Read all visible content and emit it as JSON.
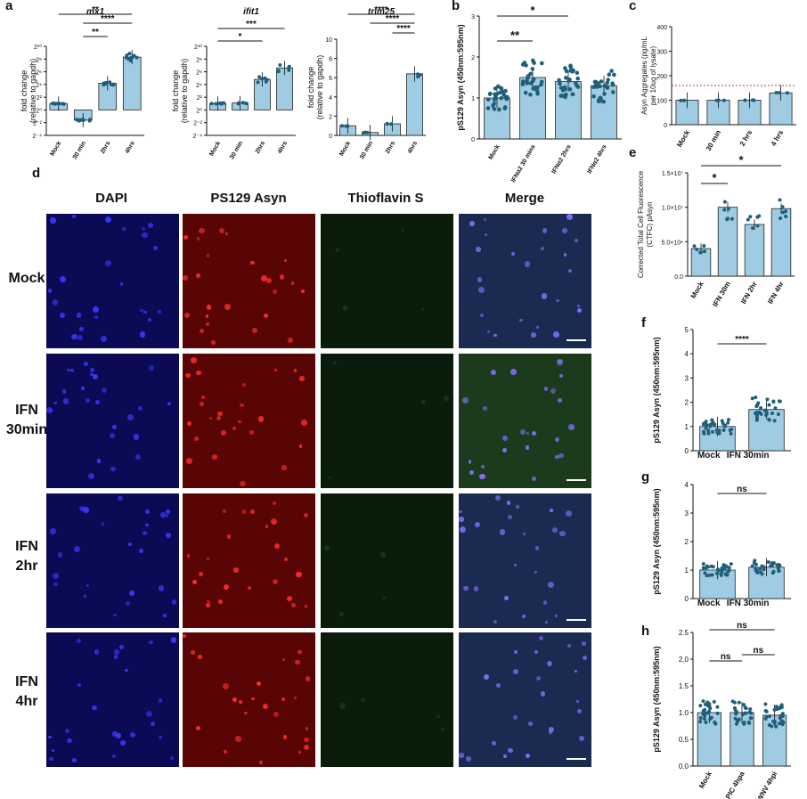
{
  "panels": {
    "a": {
      "letter": "a",
      "charts": [
        {
          "id": "mx1",
          "title": "mx1",
          "ylabel1": "fold change",
          "ylabel2": "(relative to gapdh)",
          "ticks": [
            "2¹⁰",
            "2⁸",
            "2⁶",
            "2⁴",
            "2²",
            "2⁰",
            "2⁻²",
            "2⁻⁴"
          ],
          "categories": [
            "Mock",
            "30 min",
            "2hrs",
            "4hrs"
          ],
          "values": [
            1.0,
            -1.6,
            4.2,
            8.3
          ],
          "sig": [
            {
              "from": 0,
              "to": 3,
              "label": "**"
            },
            {
              "from": 1,
              "to": 3,
              "label": "****"
            },
            {
              "from": 1,
              "to": 2,
              "label": "**"
            }
          ]
        },
        {
          "id": "ifit1",
          "title": "ifit1",
          "ylabel1": "fold change",
          "ylabel2": "(relative to gapdh)",
          "ticks": [
            "2¹⁰",
            "2⁸",
            "2⁶",
            "2⁴",
            "2²",
            "2⁰",
            "2⁻²",
            "2⁻⁴"
          ],
          "categories": [
            "Mock",
            "30 min",
            "2hrs",
            "4hrs"
          ],
          "values": [
            1.0,
            1.1,
            4.8,
            6.6
          ],
          "sig": [
            {
              "from": 0,
              "to": 3,
              "label": "***"
            },
            {
              "from": 0,
              "to": 2,
              "label": "*"
            }
          ]
        },
        {
          "id": "trim25",
          "title": "trim25",
          "ylabel1": "fold change",
          "ylabel2": "(relative to gapdh)",
          "ticks": [
            "10",
            "8",
            "6",
            "4",
            "2",
            "0"
          ],
          "categories": [
            "Mock",
            "30 min",
            "2hrs",
            "4hrs"
          ],
          "values": [
            1.0,
            0.3,
            1.2,
            6.4
          ],
          "sig": [
            {
              "from": 0,
              "to": 3,
              "label": "****"
            },
            {
              "from": 1,
              "to": 3,
              "label": "****"
            },
            {
              "from": 2,
              "to": 3,
              "label": "****"
            }
          ]
        }
      ]
    },
    "b": {
      "letter": "b",
      "ylabel": "pS129 Asyn (450nm:595nm)",
      "ticks": [
        "3",
        "2",
        "1",
        "0"
      ],
      "categories": [
        "Mock",
        "IFNα2 30 mins",
        "IFNα2 2hrs",
        "IFNα2 4hrs"
      ],
      "values": [
        1.0,
        1.5,
        1.4,
        1.3
      ],
      "sig": [
        {
          "from": 0,
          "to": 2,
          "label": "*"
        },
        {
          "from": 0,
          "to": 1,
          "label": "**"
        }
      ]
    },
    "c": {
      "letter": "c",
      "ylabel1": "Asyn Aggregates (pg/mL",
      "ylabel2": "per 10ug of lysate)",
      "ticks": [
        "400",
        "300",
        "200",
        "100",
        "0"
      ],
      "categories": [
        "Mock",
        "30 min",
        "2 hrs",
        "4 hrs"
      ],
      "values": [
        100,
        100,
        100,
        130
      ]
    },
    "e": {
      "letter": "e",
      "ylabel1": "Corrected Total Cell Fluorescence",
      "ylabel2": "(CTFC) pAsyn",
      "ticks": [
        "1.5×10⁷",
        "1.0×10⁷",
        "5.0×10⁶",
        "0.0"
      ],
      "categories": [
        "Mock",
        "IFN 30m",
        "IFN 2hr",
        "IFN 4hr"
      ],
      "values": [
        4.0,
        10.0,
        7.5,
        9.8
      ],
      "sig": [
        {
          "from": 0,
          "to": 3,
          "label": "*"
        },
        {
          "from": 0,
          "to": 1,
          "label": "*"
        }
      ]
    },
    "f": {
      "letter": "f",
      "ylabel": "pS129 Asyn (450nm:595nm)",
      "ticks": [
        "5",
        "4",
        "3",
        "2",
        "1",
        "0"
      ],
      "categories": [
        "Mock",
        "IFN 30min"
      ],
      "values": [
        1.0,
        1.7
      ],
      "sig": [
        {
          "from": 0,
          "to": 1,
          "label": "****"
        }
      ]
    },
    "g": {
      "letter": "g",
      "ylabel": "pS129 Asyn (450nm:595nm)",
      "ticks": [
        "4",
        "3",
        "2",
        "1",
        "0"
      ],
      "categories": [
        "Mock",
        "IFN 30min"
      ],
      "values": [
        1.0,
        1.1
      ],
      "sig": [
        {
          "from": 0,
          "to": 1,
          "label": "ns"
        }
      ]
    },
    "h": {
      "letter": "h",
      "ylabel": "pS129 Asyn (450nm:595nm)",
      "ticks": [
        "2.5",
        "2.0",
        "1.5",
        "1.0",
        "0.5",
        "0.0"
      ],
      "categories": [
        "Mock",
        "PIC 4hpa",
        "WNV 4hpi"
      ],
      "values": [
        1.0,
        1.0,
        0.95
      ],
      "sig": [
        {
          "from": 0,
          "to": 2,
          "label": "ns"
        },
        {
          "from": 0,
          "to": 1,
          "label": "ns"
        },
        {
          "from": 1,
          "to": 2,
          "label": "ns"
        }
      ]
    },
    "d": {
      "letter": "d",
      "columns": [
        "DAPI",
        "PS129 Asyn",
        "Thioflavin S",
        "Merge"
      ],
      "rows": [
        {
          "line1": "Mock",
          "line2": ""
        },
        {
          "line1": "IFN",
          "line2": "30min"
        },
        {
          "line1": "IFN",
          "line2": "2hr"
        },
        {
          "line1": "IFN",
          "line2": "4hr"
        }
      ]
    }
  },
  "colors": {
    "bar": "#9fcbe3",
    "dot": "#1f5f7a",
    "dapi": "#0a0a55",
    "asyn": "#5a0505",
    "thio": "#0a1c0a",
    "merge": "#1a2a50"
  }
}
